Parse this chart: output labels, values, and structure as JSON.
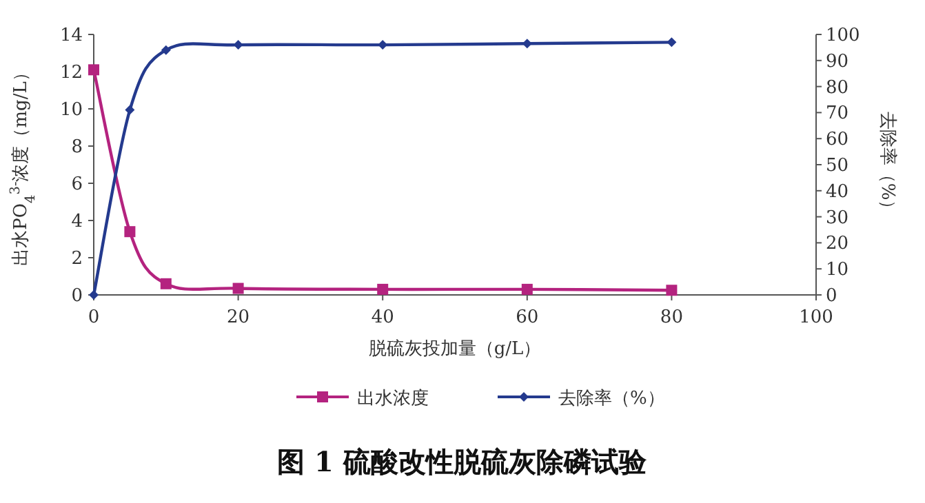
{
  "chart_data": {
    "type": "line",
    "title": "图 1  硫酸改性脱硫灰除磷试验",
    "xlabel": "脱硫灰投加量（g/L）",
    "ylabel": "出水PO$_{4}$$^{3-}$浓度（mg/L）",
    "y2label": "去除率（%）",
    "x": [
      0,
      5,
      10,
      20,
      40,
      60,
      80
    ],
    "xlim": [
      0,
      100
    ],
    "xticks": [
      0,
      20,
      40,
      60,
      80,
      100
    ],
    "ylim": [
      0,
      14
    ],
    "yticks": [
      0,
      2,
      4,
      6,
      8,
      10,
      12,
      14
    ],
    "y2lim": [
      0,
      100
    ],
    "y2ticks": [
      0,
      10,
      20,
      30,
      40,
      50,
      60,
      70,
      80,
      90,
      100
    ],
    "legend": "bottom",
    "series": [
      {
        "name": "出水浓度",
        "color": "#b4237f",
        "marker": "square",
        "values": [
          12.1,
          3.4,
          0.6,
          0.35,
          0.3,
          0.3,
          0.25
        ]
      },
      {
        "name": "去除率（%）",
        "color": "#243a8e",
        "marker": "diamond",
        "axis": "y2",
        "values": [
          0,
          71,
          94,
          96,
          96,
          96.5,
          97
        ]
      }
    ]
  }
}
